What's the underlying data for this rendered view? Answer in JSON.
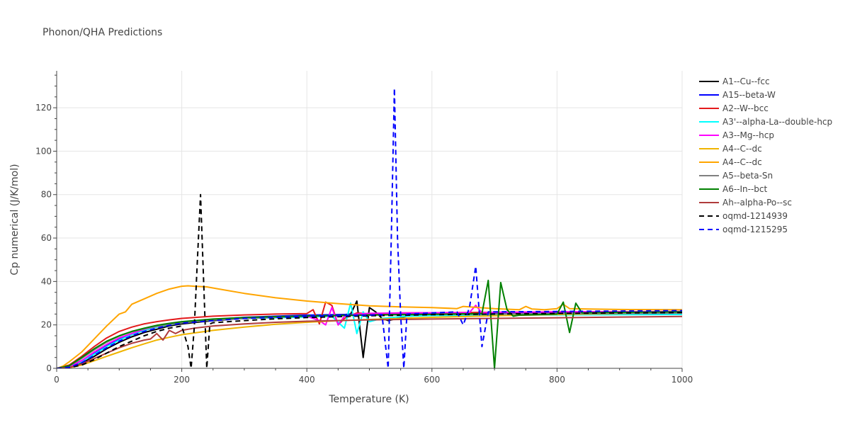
{
  "chart_data": {
    "type": "line",
    "title": "Phonon/QHA Predictions",
    "xlabel": "Temperature (K)",
    "ylabel": "Cp numerical (J/K/mol)",
    "xlim": [
      0,
      1000
    ],
    "ylim": [
      0,
      137
    ],
    "xticks": [
      0,
      200,
      400,
      600,
      800,
      1000
    ],
    "yticks": [
      0,
      20,
      40,
      60,
      80,
      100,
      120
    ],
    "grid": true,
    "legend_position": "right",
    "series": [
      {
        "name": "A1--Cu--fcc",
        "color": "#000000",
        "dash": false,
        "x": [
          0,
          20,
          40,
          60,
          80,
          100,
          120,
          140,
          160,
          180,
          200,
          250,
          300,
          350,
          400,
          450,
          470,
          480,
          490,
          500,
          510,
          520,
          530,
          560,
          600,
          700,
          800,
          900,
          1000
        ],
        "y": [
          0,
          0.5,
          2.5,
          5.5,
          9,
          12,
          14.5,
          16.5,
          18,
          19.5,
          20.5,
          22,
          23,
          23.5,
          24,
          24.5,
          25,
          31,
          5,
          28,
          26,
          23,
          22,
          24,
          24.5,
          24.8,
          25,
          25.2,
          25.3
        ]
      },
      {
        "name": "A15--beta-W",
        "color": "#0000ff",
        "dash": false,
        "x": [
          0,
          20,
          40,
          60,
          80,
          100,
          120,
          140,
          160,
          180,
          200,
          250,
          300,
          350,
          400,
          500,
          600,
          700,
          800,
          900,
          1000
        ],
        "y": [
          0,
          0.8,
          3.5,
          7,
          10.5,
          13.5,
          15.5,
          17.5,
          19,
          20,
          21,
          22.5,
          23.5,
          24,
          24.5,
          25,
          25.3,
          25.5,
          25.6,
          25.8,
          26
        ]
      },
      {
        "name": "A2--W--bcc",
        "color": "#e41a1c",
        "dash": false,
        "x": [
          0,
          20,
          40,
          60,
          80,
          100,
          120,
          140,
          160,
          180,
          200,
          250,
          300,
          350,
          400,
          410,
          420,
          430,
          440,
          450,
          460,
          480,
          500,
          550,
          600,
          700,
          800,
          900,
          1000
        ],
        "y": [
          0,
          1.5,
          5.5,
          10,
          14,
          17,
          19,
          20.5,
          21.5,
          22.3,
          23,
          24,
          24.6,
          25,
          25.2,
          27,
          20.5,
          30.5,
          29,
          20,
          23,
          25.5,
          25,
          25.5,
          25.6,
          25.8,
          26,
          26,
          26.2
        ]
      },
      {
        "name": "A3'--alpha-La--double-hcp",
        "color": "#00ffff",
        "dash": false,
        "x": [
          0,
          20,
          40,
          60,
          80,
          100,
          120,
          140,
          160,
          180,
          200,
          250,
          300,
          350,
          400,
          440,
          460,
          470,
          480,
          490,
          500,
          520,
          560,
          600,
          700,
          800,
          900,
          1000
        ],
        "y": [
          0,
          0.7,
          3,
          6.5,
          10,
          13,
          15.5,
          17.5,
          19,
          20,
          21,
          22.3,
          23,
          23.3,
          23.6,
          24,
          18.5,
          30,
          16,
          26,
          21.5,
          23,
          24,
          24.3,
          24.5,
          24.6,
          24.7,
          24.8
        ]
      },
      {
        "name": "A3--Mg--hcp",
        "color": "#ff00ff",
        "dash": false,
        "x": [
          0,
          20,
          40,
          60,
          80,
          100,
          120,
          140,
          160,
          180,
          200,
          250,
          300,
          350,
          400,
          420,
          430,
          440,
          450,
          460,
          480,
          500,
          550,
          600,
          660,
          670,
          680,
          700,
          800,
          900,
          1000
        ],
        "y": [
          0,
          0.8,
          3.5,
          7.5,
          11,
          14,
          16,
          18,
          19.3,
          20.3,
          21.2,
          22.5,
          23.3,
          23.7,
          24,
          22,
          20,
          28,
          20,
          24,
          25,
          25.3,
          25.5,
          25.6,
          25.7,
          29,
          25.5,
          25.8,
          26,
          26.1,
          26.2
        ]
      },
      {
        "name": "A4--C--dc",
        "color": "#f0b400",
        "dash": false,
        "x": [
          0,
          20,
          40,
          60,
          80,
          100,
          120,
          140,
          160,
          180,
          200,
          250,
          300,
          350,
          400,
          450,
          500,
          600,
          700,
          800,
          900,
          1000
        ],
        "y": [
          0,
          0.3,
          1.5,
          3.5,
          5.5,
          7.5,
          9.5,
          11.3,
          13,
          14.3,
          15.5,
          17.5,
          19,
          20.3,
          21.2,
          22,
          22.5,
          23.5,
          24.2,
          24.8,
          25.2,
          25.6
        ]
      },
      {
        "name": "A4--C--dc",
        "color": "#ffa500",
        "dash": false,
        "x": [
          0,
          10,
          20,
          40,
          60,
          80,
          100,
          110,
          120,
          140,
          160,
          180,
          200,
          210,
          220,
          240,
          260,
          300,
          350,
          400,
          450,
          500,
          550,
          600,
          640,
          650,
          700,
          740,
          750,
          760,
          780,
          800,
          810,
          820,
          850,
          900,
          1000
        ],
        "y": [
          0,
          1,
          3,
          7.5,
          13.5,
          19.5,
          25,
          26,
          29.5,
          32,
          34.5,
          36.5,
          37.8,
          38,
          37.8,
          37.5,
          36.5,
          34.5,
          32.5,
          31,
          29.8,
          28.8,
          28.3,
          28,
          27.5,
          28.5,
          27.5,
          27,
          28.5,
          27.3,
          27,
          27.5,
          29.5,
          27.5,
          27.3,
          27.1,
          27
        ]
      },
      {
        "name": "A5--beta-Sn",
        "color": "#808080",
        "dash": false,
        "x": [
          0,
          20,
          40,
          60,
          80,
          100,
          120,
          140,
          160,
          180,
          200,
          250,
          300,
          350,
          400,
          500,
          600,
          700,
          800,
          900,
          1000
        ],
        "y": [
          0,
          1,
          4.5,
          8.5,
          12,
          14.8,
          16.8,
          18.2,
          19.3,
          20.2,
          21,
          22.3,
          23,
          23.5,
          24,
          24.5,
          24.8,
          25,
          25.2,
          25.3,
          25.4
        ]
      },
      {
        "name": "A6--In--bct",
        "color": "#008000",
        "dash": false,
        "x": [
          0,
          20,
          40,
          60,
          80,
          100,
          120,
          140,
          160,
          180,
          200,
          250,
          300,
          350,
          400,
          500,
          600,
          680,
          690,
          700,
          710,
          720,
          730,
          740,
          800,
          810,
          820,
          830,
          840,
          900,
          1000
        ],
        "y": [
          0,
          1.2,
          5,
          9,
          12.5,
          15,
          17,
          18.5,
          19.8,
          20.7,
          21.5,
          22.7,
          23.4,
          23.8,
          24.1,
          24.6,
          24.9,
          25.2,
          40.5,
          0,
          39.5,
          27,
          24,
          24.5,
          25,
          30.5,
          16.5,
          30,
          25.5,
          25.8,
          26
        ]
      },
      {
        "name": "Ah--alpha-Po--sc",
        "color": "#b03c3c",
        "dash": false,
        "x": [
          0,
          20,
          40,
          60,
          80,
          100,
          120,
          140,
          150,
          160,
          170,
          180,
          190,
          200,
          220,
          250,
          300,
          350,
          400,
          500,
          600,
          700,
          800,
          900,
          1000
        ],
        "y": [
          0,
          0.4,
          2,
          4.5,
          7,
          9.5,
          11.5,
          13,
          13.5,
          16,
          13,
          17.5,
          16,
          17.5,
          18.5,
          19.5,
          20.5,
          21.2,
          21.7,
          22.3,
          22.7,
          23,
          23.3,
          23.6,
          23.9
        ]
      },
      {
        "name": "oqmd-1214939",
        "color": "#000000",
        "dash": true,
        "x": [
          0,
          20,
          40,
          60,
          80,
          100,
          120,
          140,
          160,
          180,
          200,
          210,
          215,
          220,
          225,
          230,
          235,
          240,
          245,
          250,
          300,
          350,
          400,
          500,
          600,
          700,
          800,
          900,
          1000
        ],
        "y": [
          0,
          0.3,
          1.5,
          4,
          7,
          10,
          12.5,
          15,
          17,
          18.5,
          19.5,
          10,
          0,
          19,
          50,
          80,
          40,
          0,
          20.5,
          21,
          22,
          22.8,
          23.4,
          24.2,
          24.7,
          25,
          25.3,
          25.5,
          25.7
        ]
      },
      {
        "name": "oqmd-1215295",
        "color": "#0000ff",
        "dash": true,
        "x": [
          0,
          20,
          40,
          60,
          80,
          100,
          120,
          140,
          160,
          180,
          200,
          250,
          300,
          350,
          400,
          500,
          520,
          530,
          535,
          540,
          545,
          550,
          555,
          560,
          600,
          640,
          650,
          660,
          670,
          680,
          690,
          700,
          800,
          900,
          1000
        ],
        "y": [
          0,
          0.5,
          2.5,
          6,
          9.5,
          12.5,
          15,
          17,
          18.5,
          19.8,
          20.8,
          22,
          23,
          23.5,
          24,
          24.5,
          24.8,
          0,
          60,
          129,
          60,
          24,
          0,
          25,
          25.5,
          26,
          20,
          28,
          47,
          10,
          26,
          26,
          26.2,
          26.4,
          26.6
        ]
      }
    ]
  }
}
